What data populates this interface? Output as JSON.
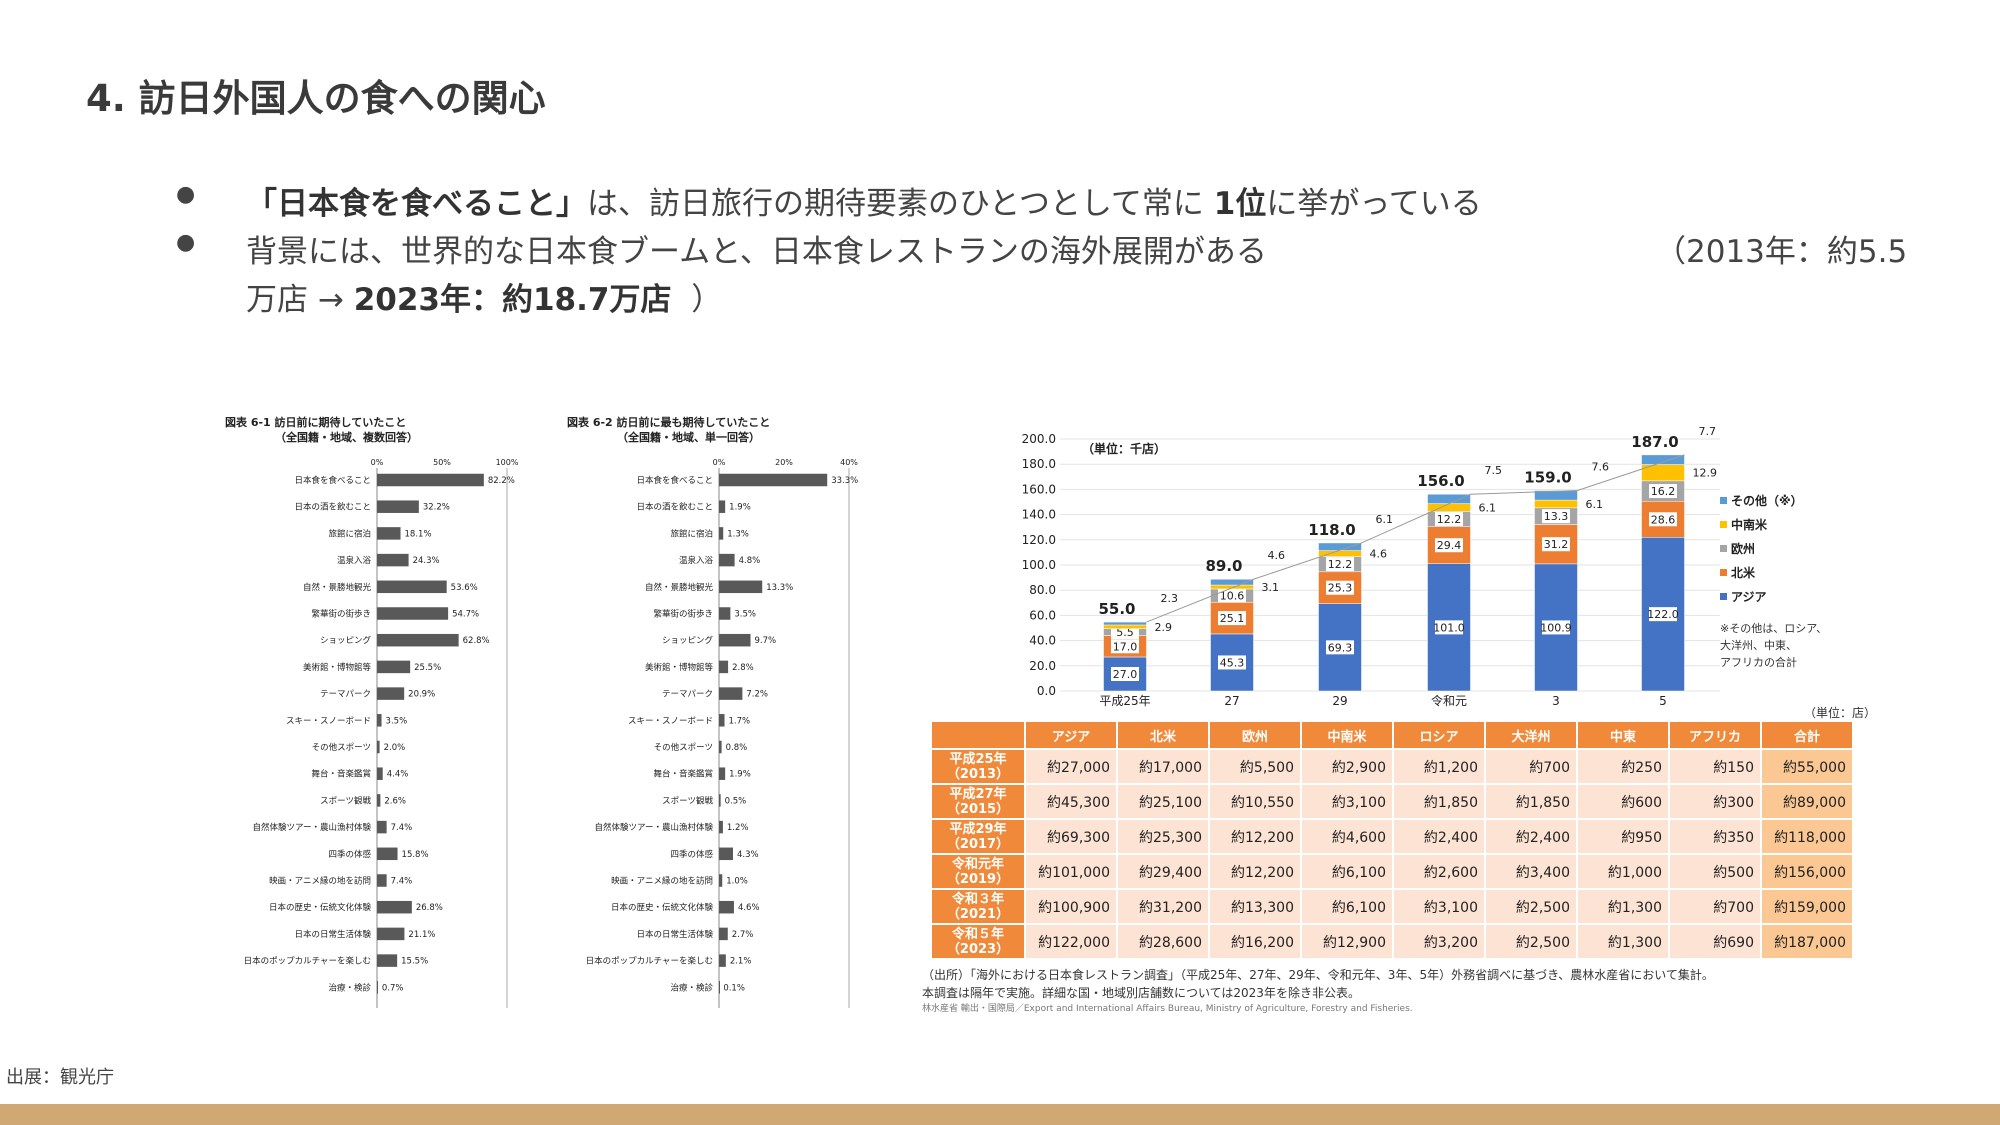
{
  "title": "4. 訪日外国人の食への関心",
  "bullets": {
    "b1_bold1": "「日本食を食べること」",
    "b1_mid": "は、訪日旅行の期待要素のひとつとして常に",
    "b1_bold2": "1位",
    "b1_end": "に挙がっている",
    "b2_text": "背景には、世界的な日本食ブームと、日本食レストランの海外展開がある",
    "b2_right": "（2013年：約5.5",
    "b2_cont": "万店 →",
    "b2_bold": "2023年：約18.7万店",
    "b2_close": "）"
  },
  "source": "出展：観光庁",
  "chart_data": [
    {
      "type": "bar",
      "orientation": "horizontal",
      "title": "図表 6-1 訪日前に期待していたこと",
      "subtitle": "（全国籍・地域、複数回答）",
      "ticks": [
        "0%",
        "50%",
        "100%"
      ],
      "xlim": [
        0,
        100
      ],
      "categories": [
        "日本食を食べること",
        "日本の酒を飲むこと",
        "旅館に宿泊",
        "温泉入浴",
        "自然・景勝地観光",
        "繁華街の街歩き",
        "ショッピング",
        "美術館・博物館等",
        "テーマパーク",
        "スキー・スノーボード",
        "その他スポーツ",
        "舞台・音楽鑑賞",
        "スポーツ観戦",
        "自然体験ツアー・農山漁村体験",
        "四季の体感",
        "映画・アニメ縁の地を訪問",
        "日本の歴史・伝統文化体験",
        "日本の日常生活体験",
        "日本のポップカルチャーを楽しむ",
        "治療・検診"
      ],
      "values": [
        82.2,
        32.2,
        18.1,
        24.3,
        53.6,
        54.7,
        62.8,
        25.5,
        20.9,
        3.5,
        2.0,
        4.4,
        2.6,
        7.4,
        15.8,
        7.4,
        26.8,
        21.1,
        15.5,
        0.7
      ],
      "labels": [
        "82.2%",
        "32.2%",
        "18.1%",
        "24.3%",
        "53.6%",
        "54.7%",
        "62.8%",
        "25.5%",
        "20.9%",
        "3.5%",
        "2.0%",
        "4.4%",
        "2.6%",
        "7.4%",
        "15.8%",
        "7.4%",
        "26.8%",
        "21.1%",
        "15.5%",
        "0.7%"
      ]
    },
    {
      "type": "bar",
      "orientation": "horizontal",
      "title": "図表 6-2 訪日前に最も期待していたこと",
      "subtitle": "（全国籍・地域、単一回答）",
      "ticks": [
        "0%",
        "20%",
        "40%"
      ],
      "xlim": [
        0,
        40
      ],
      "categories": [
        "日本食を食べること",
        "日本の酒を飲むこと",
        "旅館に宿泊",
        "温泉入浴",
        "自然・景勝地観光",
        "繁華街の街歩き",
        "ショッピング",
        "美術館・博物館等",
        "テーマパーク",
        "スキー・スノーボード",
        "その他スポーツ",
        "舞台・音楽鑑賞",
        "スポーツ観戦",
        "自然体験ツアー・農山漁村体験",
        "四季の体感",
        "映画・アニメ縁の地を訪問",
        "日本の歴史・伝統文化体験",
        "日本の日常生活体験",
        "日本のポップカルチャーを楽しむ",
        "治療・検診"
      ],
      "values": [
        33.3,
        1.9,
        1.3,
        4.8,
        13.3,
        3.5,
        9.7,
        2.8,
        7.2,
        1.7,
        0.8,
        1.9,
        0.5,
        1.2,
        4.3,
        1.0,
        4.6,
        2.7,
        2.1,
        0.1
      ],
      "labels": [
        "33.3%",
        "1.9%",
        "1.3%",
        "4.8%",
        "13.3%",
        "3.5%",
        "9.7%",
        "2.8%",
        "7.2%",
        "1.7%",
        "0.8%",
        "1.9%",
        "0.5%",
        "1.2%",
        "4.3%",
        "1.0%",
        "4.6%",
        "2.7%",
        "2.1%",
        "0.1%"
      ]
    },
    {
      "type": "bar",
      "stacked": true,
      "unit_label": "（単位：千店）",
      "ylim": [
        0,
        200
      ],
      "yticks": [
        "0.0",
        "20.0",
        "40.0",
        "60.0",
        "80.0",
        "100.0",
        "120.0",
        "140.0",
        "160.0",
        "180.0",
        "200.0"
      ],
      "categories": [
        "平成25年",
        "27",
        "29",
        "令和元",
        "3",
        "5"
      ],
      "totals": [
        55.0,
        89.0,
        118.0,
        156.0,
        159.0,
        187.0
      ],
      "totals_labels": [
        "55.0",
        "89.0",
        "118.0",
        "156.0",
        "159.0",
        "187.0"
      ],
      "series": [
        {
          "name": "アジア",
          "color": "#4472c4",
          "values": [
            27.0,
            45.3,
            69.3,
            101.0,
            100.9,
            122.0
          ],
          "labels": [
            "27.0",
            "45.3",
            "69.3",
            "101.0",
            "100.9",
            "122.0"
          ]
        },
        {
          "name": "北米",
          "color": "#ed7d31",
          "values": [
            17.0,
            25.1,
            25.3,
            29.4,
            31.2,
            28.6
          ],
          "labels": [
            "17.0",
            "25.1",
            "25.3",
            "29.4",
            "31.2",
            "28.6"
          ]
        },
        {
          "name": "欧州",
          "color": "#a5a5a5",
          "values": [
            5.5,
            10.6,
            12.2,
            12.2,
            13.3,
            16.2
          ],
          "labels": [
            "5.5",
            "10.6",
            "12.2",
            "12.2",
            "13.3",
            "16.2"
          ]
        },
        {
          "name": "中南米",
          "color": "#ffc000",
          "values": [
            2.9,
            3.1,
            4.6,
            6.1,
            6.1,
            12.9
          ],
          "labels": [
            "2.9",
            "3.1",
            "4.6",
            "6.1",
            "6.1",
            "12.9"
          ]
        },
        {
          "name": "その他（※）",
          "color": "#5b9bd5",
          "values": [
            2.3,
            4.6,
            6.1,
            7.5,
            7.6,
            7.7
          ],
          "labels": [
            "2.3",
            "4.6",
            "6.1",
            "7.5",
            "7.6",
            "7.7"
          ]
        }
      ],
      "legend_note": [
        "※その他は、ロシア、",
        "大洋州、中東、",
        "アフリカの合計"
      ],
      "legend_position": "right"
    }
  ],
  "table": {
    "unit": "（単位：店）",
    "headers": [
      "アジア",
      "北米",
      "欧州",
      "中南米",
      "ロシア",
      "大洋州",
      "中東",
      "アフリカ",
      "合計"
    ],
    "rows": [
      {
        "year": "平成25年",
        "year2": "（2013）",
        "cells": [
          "約27,000",
          "約17,000",
          "約5,500",
          "約2,900",
          "約1,200",
          "約700",
          "約250",
          "約150",
          "約55,000"
        ]
      },
      {
        "year": "平成27年",
        "year2": "（2015）",
        "cells": [
          "約45,300",
          "約25,100",
          "約10,550",
          "約3,100",
          "約1,850",
          "約1,850",
          "約600",
          "約300",
          "約89,000"
        ]
      },
      {
        "year": "平成29年",
        "year2": "（2017）",
        "cells": [
          "約69,300",
          "約25,300",
          "約12,200",
          "約4,600",
          "約2,400",
          "約2,400",
          "約950",
          "約350",
          "約118,000"
        ]
      },
      {
        "year": "令和元年",
        "year2": "（2019）",
        "cells": [
          "約101,000",
          "約29,400",
          "約12,200",
          "約6,100",
          "約2,600",
          "約3,400",
          "約1,000",
          "約500",
          "約156,000"
        ]
      },
      {
        "year": "令和３年",
        "year2": "（2021）",
        "cells": [
          "約100,900",
          "約31,200",
          "約13,300",
          "約6,100",
          "約3,100",
          "約2,500",
          "約1,300",
          "約700",
          "約159,000"
        ]
      },
      {
        "year": "令和５年",
        "year2": "（2023）",
        "cells": [
          "約122,000",
          "約28,600",
          "約16,200",
          "約12,900",
          "約3,200",
          "約2,500",
          "約1,300",
          "約690",
          "約187,000"
        ]
      }
    ],
    "notes": [
      "（出所）「海外における日本食レストラン調査」（平成25年、27年、29年、令和元年、3年、5年）外務省調べに基づき、農林水産省において集計。",
      "本調査は隔年で実施。詳細な国・地域別店舗数については2023年を除き非公表。",
      "林水産省 輸出・国際局／Export and International Affairs Bureau,  Ministry of Agriculture, Forestry and Fisheries."
    ]
  }
}
